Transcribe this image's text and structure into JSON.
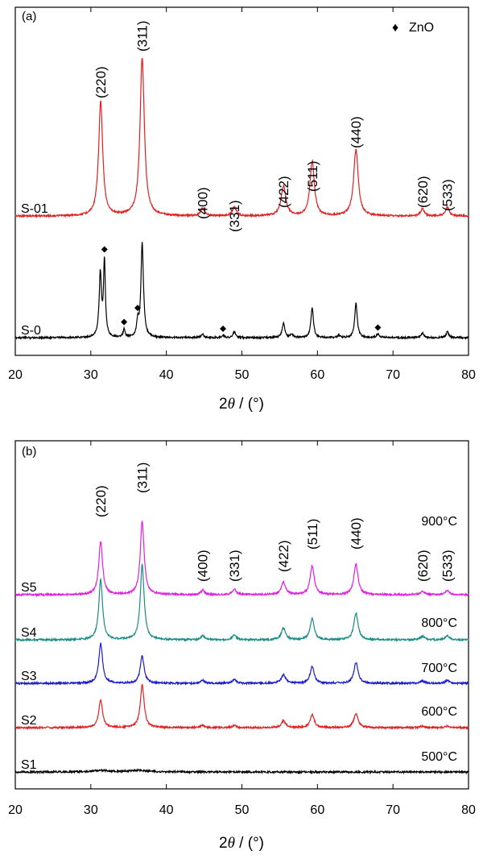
{
  "chart_data": [
    {
      "type": "line",
      "panel_label": "(a)",
      "xlabel": "2θ / (°)",
      "xlabel_parts": {
        "prefix": "2",
        "theta": "θ",
        "suffix": " / (°)"
      },
      "xlim": [
        20,
        80
      ],
      "xticks": [
        20,
        30,
        40,
        50,
        60,
        70,
        80
      ],
      "ylabel": "",
      "legend": {
        "marker": "♦",
        "label": "ZnO",
        "position": "top-right"
      },
      "peaks": [
        {
          "label": "(220)",
          "x": 31.3
        },
        {
          "label": "(311)",
          "x": 36.8
        },
        {
          "label": "(400)",
          "x": 44.8
        },
        {
          "label": "(331)",
          "x": 49.0
        },
        {
          "label": "(422)",
          "x": 55.5
        },
        {
          "label": "(511)",
          "x": 59.3
        },
        {
          "label": "(440)",
          "x": 65.1
        },
        {
          "label": "(620)",
          "x": 73.9
        },
        {
          "label": "(533)",
          "x": 77.2
        }
      ],
      "series": [
        {
          "name": "S-01",
          "color": "#e02020",
          "baseline": 10,
          "label_pos": [
            36,
            76
          ],
          "peaks": [
            [
              31.3,
              100,
              0.32
            ],
            [
              36.8,
              138,
              0.34
            ],
            [
              44.8,
              7,
              0.3
            ],
            [
              49.0,
              8,
              0.3
            ],
            [
              55.5,
              26,
              0.38
            ],
            [
              59.3,
              48,
              0.34
            ],
            [
              65.1,
              58,
              0.36
            ],
            [
              73.9,
              6,
              0.3
            ],
            [
              77.2,
              8,
              0.3
            ]
          ]
        },
        {
          "name": "S-0",
          "color": "#000000",
          "baseline": 10,
          "label_pos": [
            23,
            22
          ],
          "peaks": [
            [
              31.25,
              55,
              0.18
            ],
            [
              31.8,
              66,
              0.15
            ],
            [
              34.4,
              7,
              0.15
            ],
            [
              36.2,
              12,
              0.15
            ],
            [
              36.8,
              82,
              0.2
            ],
            [
              44.8,
              3,
              0.2
            ],
            [
              47.5,
              2,
              0.2
            ],
            [
              49.0,
              5,
              0.2
            ],
            [
              55.5,
              13,
              0.2
            ],
            [
              56.6,
              3,
              0.2
            ],
            [
              59.3,
              26,
              0.2
            ],
            [
              62.8,
              2,
              0.2
            ],
            [
              65.1,
              30,
              0.2
            ],
            [
              68.0,
              3,
              0.2
            ],
            [
              73.9,
              4,
              0.2
            ],
            [
              77.2,
              5,
              0.2
            ]
          ]
        }
      ],
      "zno_markers": [
        31.8,
        34.4,
        36.2,
        47.5,
        68.0
      ]
    },
    {
      "type": "line",
      "panel_label": "(b)",
      "xlabel": "2θ / (°)",
      "xlabel_parts": {
        "prefix": "2",
        "theta": "θ",
        "suffix": " / (°)"
      },
      "xlim": [
        20,
        80
      ],
      "xticks": [
        20,
        30,
        40,
        50,
        60,
        70,
        80
      ],
      "ylabel": "",
      "peaks": [
        {
          "label": "(220)",
          "x": 31.3
        },
        {
          "label": "(311)",
          "x": 36.8
        },
        {
          "label": "(400)",
          "x": 44.8
        },
        {
          "label": "(331)",
          "x": 49.0
        },
        {
          "label": "(422)",
          "x": 55.5
        },
        {
          "label": "(511)",
          "x": 59.3
        },
        {
          "label": "(440)",
          "x": 65.1
        },
        {
          "label": "(620)",
          "x": 73.9
        },
        {
          "label": "(533)",
          "x": 77.2
        }
      ],
      "series": [
        {
          "name": "S5",
          "temperature": "900°C",
          "color": "#e020e0",
          "baseline": 10,
          "label_pos": [
            23,
            68
          ],
          "peaks": [
            [
              31.3,
              70,
              0.3
            ],
            [
              36.8,
              96,
              0.3
            ],
            [
              44.8,
              6,
              0.3
            ],
            [
              49.0,
              7,
              0.3
            ],
            [
              55.5,
              16,
              0.35
            ],
            [
              59.3,
              38,
              0.32
            ],
            [
              65.1,
              40,
              0.33
            ],
            [
              73.9,
              5,
              0.3
            ],
            [
              77.2,
              6,
              0.3
            ]
          ]
        },
        {
          "name": "S4",
          "temperature": "800°C",
          "color": "#1a8c84",
          "baseline": 10,
          "label_pos": [
            23,
            48
          ],
          "peaks": [
            [
              31.3,
              78,
              0.3
            ],
            [
              36.8,
              98,
              0.3
            ],
            [
              44.8,
              5,
              0.3
            ],
            [
              49.0,
              6,
              0.3
            ],
            [
              55.5,
              15,
              0.35
            ],
            [
              59.3,
              28,
              0.32
            ],
            [
              65.1,
              35,
              0.33
            ],
            [
              73.9,
              5,
              0.3
            ],
            [
              77.2,
              5,
              0.3
            ]
          ]
        },
        {
          "name": "S3",
          "temperature": "700°C",
          "color": "#1a1acc",
          "baseline": 10,
          "label_pos": [
            23,
            28
          ],
          "peaks": [
            [
              31.3,
              52,
              0.3
            ],
            [
              36.8,
              36,
              0.3
            ],
            [
              44.8,
              4,
              0.3
            ],
            [
              49.0,
              5,
              0.3
            ],
            [
              55.5,
              11,
              0.35
            ],
            [
              59.3,
              22,
              0.32
            ],
            [
              65.1,
              27,
              0.33
            ],
            [
              73.9,
              3,
              0.3
            ],
            [
              77.2,
              4,
              0.3
            ]
          ]
        },
        {
          "name": "S2",
          "temperature": "600°C",
          "color": "#e02020",
          "baseline": 10,
          "label_pos": [
            23,
            8
          ],
          "peaks": [
            [
              31.3,
              36,
              0.3
            ],
            [
              36.8,
              56,
              0.3
            ],
            [
              44.8,
              3,
              0.3
            ],
            [
              49.0,
              3,
              0.3
            ],
            [
              55.5,
              9,
              0.35
            ],
            [
              59.3,
              17,
              0.32
            ],
            [
              65.1,
              19,
              0.33
            ],
            [
              73.9,
              2,
              0.3
            ],
            [
              77.2,
              2,
              0.3
            ]
          ]
        },
        {
          "name": "S1",
          "temperature": "500°C",
          "color": "#000000",
          "baseline": 10,
          "label_pos": [
            23,
            -12
          ],
          "peaks": [
            [
              31.3,
              2,
              1.5
            ],
            [
              36.2,
              2,
              1.5
            ]
          ]
        }
      ]
    }
  ]
}
